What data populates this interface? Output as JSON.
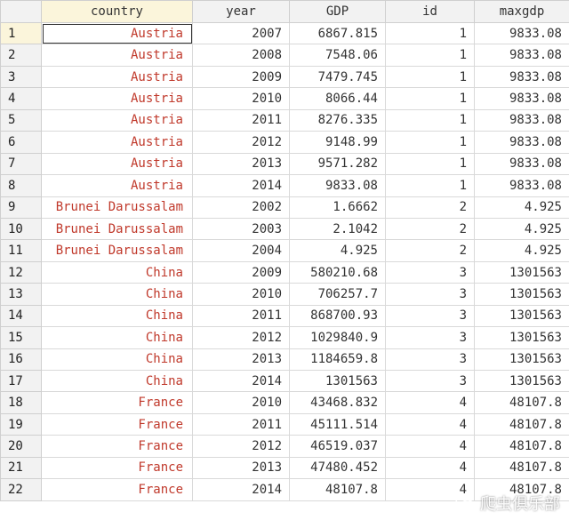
{
  "columns": [
    "country",
    "year",
    "GDP",
    "id",
    "maxgdp"
  ],
  "rows": [
    [
      "1",
      "Austria",
      "2007",
      "6867.815",
      "1",
      "9833.08"
    ],
    [
      "2",
      "Austria",
      "2008",
      "7548.06",
      "1",
      "9833.08"
    ],
    [
      "3",
      "Austria",
      "2009",
      "7479.745",
      "1",
      "9833.08"
    ],
    [
      "4",
      "Austria",
      "2010",
      "8066.44",
      "1",
      "9833.08"
    ],
    [
      "5",
      "Austria",
      "2011",
      "8276.335",
      "1",
      "9833.08"
    ],
    [
      "6",
      "Austria",
      "2012",
      "9148.99",
      "1",
      "9833.08"
    ],
    [
      "7",
      "Austria",
      "2013",
      "9571.282",
      "1",
      "9833.08"
    ],
    [
      "8",
      "Austria",
      "2014",
      "9833.08",
      "1",
      "9833.08"
    ],
    [
      "9",
      "Brunei Darussalam",
      "2002",
      "1.6662",
      "2",
      "4.925"
    ],
    [
      "10",
      "Brunei Darussalam",
      "2003",
      "2.1042",
      "2",
      "4.925"
    ],
    [
      "11",
      "Brunei Darussalam",
      "2004",
      "4.925",
      "2",
      "4.925"
    ],
    [
      "12",
      "China",
      "2009",
      "580210.68",
      "3",
      "1301563"
    ],
    [
      "13",
      "China",
      "2010",
      "706257.7",
      "3",
      "1301563"
    ],
    [
      "14",
      "China",
      "2011",
      "868700.93",
      "3",
      "1301563"
    ],
    [
      "15",
      "China",
      "2012",
      "1029840.9",
      "3",
      "1301563"
    ],
    [
      "16",
      "China",
      "2013",
      "1184659.8",
      "3",
      "1301563"
    ],
    [
      "17",
      "China",
      "2014",
      "1301563",
      "3",
      "1301563"
    ],
    [
      "18",
      "France",
      "2010",
      "43468.832",
      "4",
      "48107.8"
    ],
    [
      "19",
      "France",
      "2011",
      "45111.514",
      "4",
      "48107.8"
    ],
    [
      "20",
      "France",
      "2012",
      "46519.037",
      "4",
      "48107.8"
    ],
    [
      "21",
      "France",
      "2013",
      "47480.452",
      "4",
      "48107.8"
    ],
    [
      "22",
      "France",
      "2014",
      "48107.8",
      "4",
      "48107.8"
    ]
  ],
  "selected_row": 0,
  "watermark_text": "爬虫俱乐部",
  "colors": {
    "string_text": "#c0392b",
    "numeric_text": "#333333",
    "selected_bg": "#fbf5db"
  }
}
